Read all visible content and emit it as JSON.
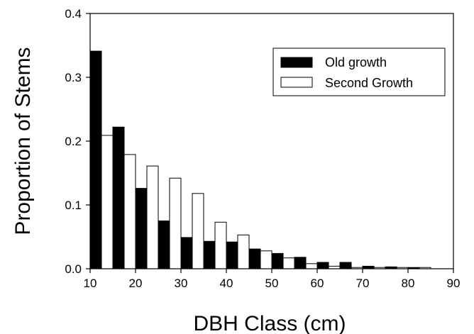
{
  "chart_data": {
    "type": "bar",
    "title": "",
    "xlabel": "DBH Class (cm)",
    "ylabel": "Proportion of Stems",
    "xlim": [
      10,
      90
    ],
    "ylim": [
      0,
      0.4
    ],
    "x_ticks": [
      "10",
      "20",
      "30",
      "40",
      "50",
      "60",
      "70",
      "80",
      "90"
    ],
    "y_ticks": [
      "0.0",
      "0.1",
      "0.2",
      "0.3",
      "0.4"
    ],
    "x": [
      12.5,
      17.5,
      22.5,
      27.5,
      32.5,
      37.5,
      42.5,
      47.5,
      52.5,
      57.5,
      62.5,
      67.5,
      72.5,
      77.5,
      82.5
    ],
    "series": [
      {
        "name": "Old growth",
        "color": "#000000",
        "values": [
          0.341,
          0.222,
          0.126,
          0.075,
          0.049,
          0.043,
          0.042,
          0.031,
          0.024,
          0.018,
          0.01,
          0.01,
          0.004,
          0.003,
          0.002
        ]
      },
      {
        "name": "Second Growth",
        "color": "#ffffff",
        "values": [
          0.209,
          0.179,
          0.161,
          0.142,
          0.118,
          0.073,
          0.053,
          0.028,
          0.017,
          0.008,
          0.004,
          0.002,
          0.002,
          0.002,
          0.002
        ]
      }
    ],
    "grid": false,
    "legend_position": "top-right"
  }
}
